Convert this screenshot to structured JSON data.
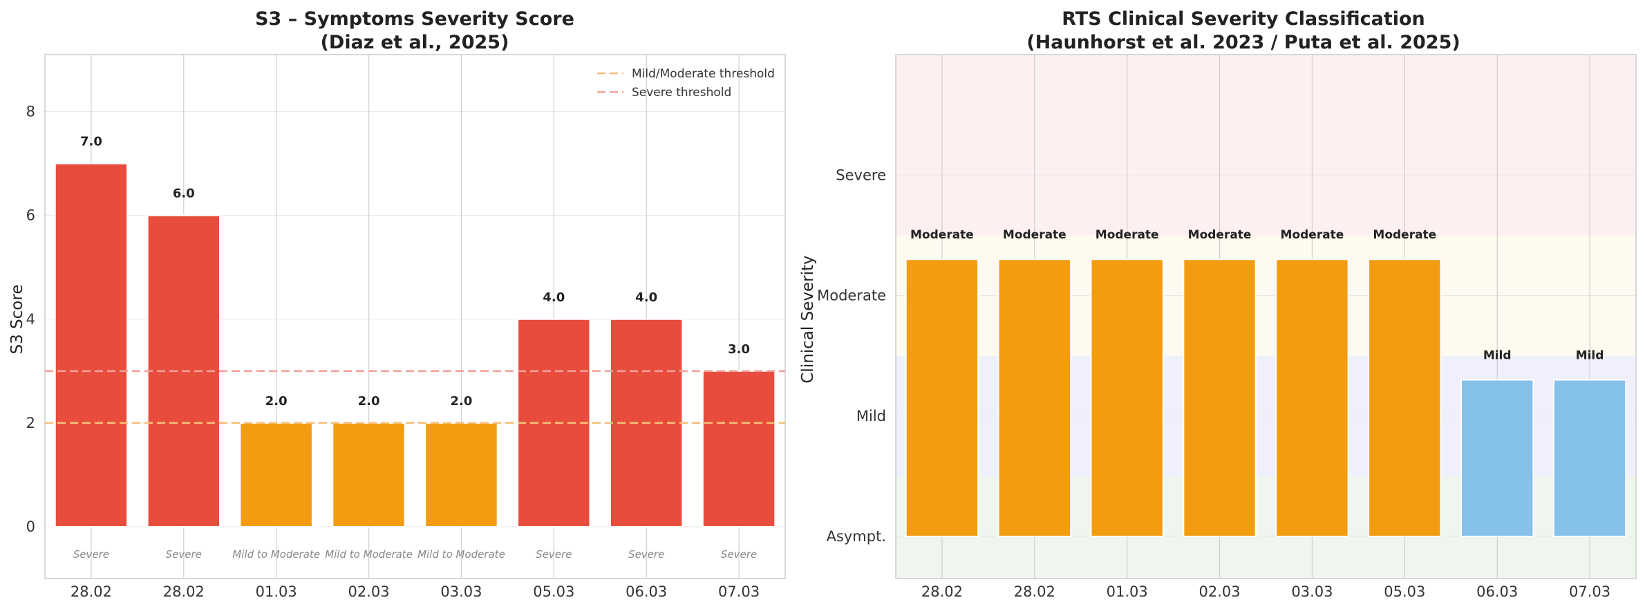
{
  "chart_data": [
    {
      "type": "bar",
      "title": "S3 – Symptoms Severity Score",
      "subtitle": "(Diaz et al., 2025)",
      "xlabel": "",
      "ylabel": "S3 Score",
      "categories": [
        "28.02",
        "28.02",
        "01.03",
        "02.03",
        "03.03",
        "05.03",
        "06.03",
        "07.03"
      ],
      "values": [
        7.0,
        6.0,
        2.0,
        2.0,
        2.0,
        4.0,
        4.0,
        3.0
      ],
      "value_labels": [
        "7.0",
        "6.0",
        "2.0",
        "2.0",
        "2.0",
        "4.0",
        "4.0",
        "3.0"
      ],
      "category_labels": [
        "Severe",
        "Severe",
        "Mild to Moderate",
        "Mild to Moderate",
        "Mild to Moderate",
        "Severe",
        "Severe",
        "Severe"
      ],
      "bar_colors": [
        "#e74c3c",
        "#e74c3c",
        "#f39c12",
        "#f39c12",
        "#f39c12",
        "#e74c3c",
        "#e74c3c",
        "#e74c3c"
      ],
      "ylim": [
        -1,
        9.1
      ],
      "yticks": [
        0,
        2,
        4,
        6,
        8
      ],
      "thresholds": [
        {
          "name": "Mild/Moderate threshold",
          "value": 2,
          "color": "#f5c07a"
        },
        {
          "name": "Severe threshold",
          "value": 3,
          "color": "#f0a199"
        }
      ],
      "legend": "top-right",
      "grid": true
    },
    {
      "type": "bar",
      "title": "RTS Clinical Severity Classification",
      "subtitle": "(Haunhorst et al. 2023 / Puta et al. 2025)",
      "xlabel": "",
      "ylabel": "Clinical Severity",
      "categories": [
        "28.02",
        "28.02",
        "01.03",
        "02.03",
        "03.03",
        "05.03",
        "06.03",
        "07.03"
      ],
      "values": [
        2.3,
        2.3,
        2.3,
        2.3,
        2.3,
        2.3,
        1.3,
        1.3
      ],
      "value_labels": [
        "Moderate",
        "Moderate",
        "Moderate",
        "Moderate",
        "Moderate",
        "Moderate",
        "Mild",
        "Mild"
      ],
      "bar_colors": [
        "#f39c12",
        "#f39c12",
        "#f39c12",
        "#f39c12",
        "#f39c12",
        "#f39c12",
        "#85c1e9",
        "#85c1e9"
      ],
      "y_categories": [
        "Asympt.",
        "Mild",
        "Moderate",
        "Severe"
      ],
      "yticks": [
        0,
        1,
        2,
        3
      ],
      "ylim": [
        -0.35,
        4
      ],
      "bands": [
        {
          "from": -0.35,
          "to": 0.5,
          "color": "#eef6ee"
        },
        {
          "from": 0.5,
          "to": 1.5,
          "color": "#eff0fc"
        },
        {
          "from": 1.5,
          "to": 2.5,
          "color": "#fffaf0"
        },
        {
          "from": 2.5,
          "to": 4,
          "color": "#fef0f0"
        }
      ],
      "grid": true
    }
  ]
}
